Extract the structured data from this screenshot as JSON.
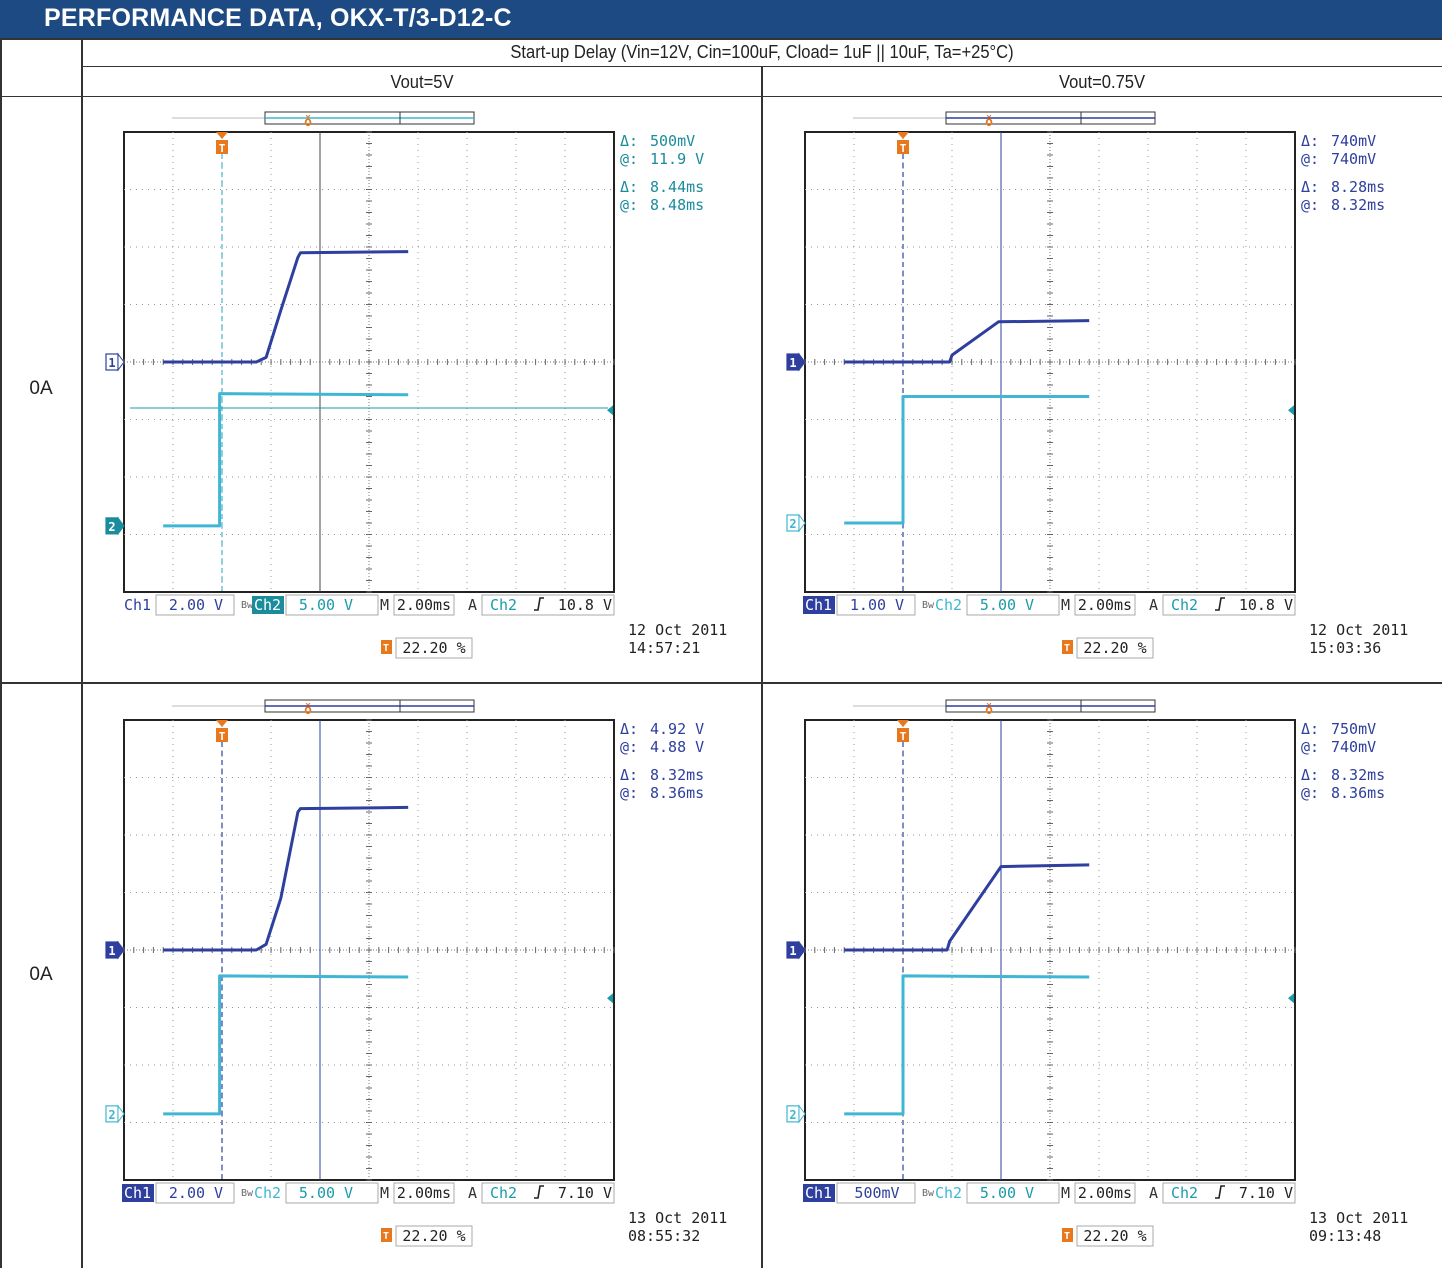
{
  "header": {
    "title": "PERFORMANCE DATA, OKX-T/3-D12-C"
  },
  "table": {
    "caption": "Start-up Delay (Vin=12V, Cin=100uF, Cload= 1uF || 10uF, Ta=+25°C)",
    "columns": [
      "Vout=5V",
      "Vout=0.75V"
    ],
    "rows": [
      "0A",
      "0A"
    ]
  },
  "colors": {
    "ch1": "#2e3f9e",
    "ch2": "#3fb6d3",
    "trigger": "#e8781e",
    "header_bg": "#1d4a82",
    "meas": "#1a8c9c"
  },
  "chart_data": [
    {
      "type": "line",
      "title": "",
      "xlabel": "",
      "ylabel": "",
      "timebase_label": "2.00ms",
      "timebase": 2.0,
      "divisions": [
        10,
        8
      ],
      "grid": true,
      "trigger_time": 0.2,
      "trigger_vdiv": 0.13,
      "ch1": {
        "label": "Ch1",
        "scale": "2.00 V",
        "ref_div": 4.0,
        "cursor_time": 4.2,
        "highlight": false,
        "points": [
          [
            -2.2,
            0
          ],
          [
            1.6,
            0
          ],
          [
            2.0,
            0.08
          ],
          [
            2.6,
            0.9
          ],
          [
            3.3,
            1.82
          ],
          [
            3.4,
            1.9
          ],
          [
            7.8,
            1.92
          ]
        ]
      },
      "ch2": {
        "label": "Ch2",
        "scale": "5.00 V",
        "ref_div": 1.15,
        "highlight": true,
        "points": [
          [
            -2.2,
            0
          ],
          [
            0.1,
            0
          ],
          [
            0.1,
            2.3
          ],
          [
            7.8,
            2.28
          ]
        ]
      },
      "trigger": {
        "label": "A",
        "source": "Ch2",
        "level": "10.8 V",
        "position": "22.20 %"
      },
      "measurements": {
        "dv": "500mV",
        "v_at": "11.9 V",
        "dt": "8.44ms",
        "t_at": "8.48ms"
      },
      "date": "12 Oct  2011",
      "time": "14:57:21",
      "hcursor_div": 3.2,
      "labels": {
        "delta": "Δ:",
        "at": "@:",
        "ch_badge_1": "1",
        "ch_badge_2": "2",
        "trig_marker": "T",
        "mark_m": "M"
      }
    },
    {
      "type": "line",
      "title": "",
      "xlabel": "",
      "ylabel": "",
      "timebase_label": "2.00ms",
      "timebase": 2.0,
      "divisions": [
        10,
        8
      ],
      "grid": true,
      "trigger_time": 0.2,
      "trigger_vdiv": 0.13,
      "ch1": {
        "label": "Ch1",
        "scale": "1.00 V",
        "ref_div": 4.0,
        "cursor_time": 4.2,
        "highlight": true,
        "points": [
          [
            -2.2,
            0
          ],
          [
            2.1,
            0
          ],
          [
            2.2,
            0.12
          ],
          [
            4.1,
            0.7
          ],
          [
            7.8,
            0.72
          ]
        ]
      },
      "ch2": {
        "label": "Ch2",
        "scale": "5.00 V",
        "ref_div": 1.2,
        "highlight": false,
        "points": [
          [
            -2.2,
            0
          ],
          [
            0.2,
            0
          ],
          [
            0.2,
            2.2
          ],
          [
            7.8,
            2.2
          ]
        ]
      },
      "trigger": {
        "label": "A",
        "source": "Ch2",
        "level": "10.8 V",
        "position": "22.20 %"
      },
      "measurements": {
        "dv": "740mV",
        "v_at": "740mV",
        "dt": "8.28ms",
        "t_at": "8.32ms"
      },
      "date": "12 Oct  2011",
      "time": "15:03:36",
      "hcursor_div": null,
      "labels": {
        "delta": "Δ:",
        "at": "@:",
        "ch_badge_1": "1",
        "ch_badge_2": "2",
        "trig_marker": "T",
        "mark_m": "M"
      }
    },
    {
      "type": "line",
      "title": "",
      "xlabel": "",
      "ylabel": "",
      "timebase_label": "2.00ms",
      "timebase": 2.0,
      "divisions": [
        10,
        8
      ],
      "grid": true,
      "trigger_time": 0.2,
      "trigger_vdiv": 0.13,
      "ch1": {
        "label": "Ch1",
        "scale": "2.00 V",
        "ref_div": 4.0,
        "cursor_time": 4.2,
        "highlight": true,
        "points": [
          [
            -2.2,
            0
          ],
          [
            1.6,
            0
          ],
          [
            2.0,
            0.1
          ],
          [
            2.6,
            0.9
          ],
          [
            3.3,
            2.4
          ],
          [
            3.4,
            2.46
          ],
          [
            7.8,
            2.48
          ]
        ]
      },
      "ch2": {
        "label": "Ch2",
        "scale": "5.00 V",
        "ref_div": 1.15,
        "highlight": false,
        "points": [
          [
            -2.2,
            0
          ],
          [
            0.1,
            0
          ],
          [
            0.1,
            2.4
          ],
          [
            7.8,
            2.38
          ]
        ]
      },
      "trigger": {
        "label": "A",
        "source": "Ch2",
        "level": "7.10 V",
        "position": "22.20 %"
      },
      "measurements": {
        "dv": "4.92 V",
        "v_at": "4.88 V",
        "dt": "8.32ms",
        "t_at": "8.36ms"
      },
      "date": "13 Oct  2011",
      "time": "08:55:32",
      "hcursor_div": null,
      "labels": {
        "delta": "Δ:",
        "at": "@:",
        "ch_badge_1": "1",
        "ch_badge_2": "2",
        "trig_marker": "T",
        "mark_m": "M"
      }
    },
    {
      "type": "line",
      "title": "",
      "xlabel": "",
      "ylabel": "",
      "timebase_label": "2.00ms",
      "timebase": 2.0,
      "divisions": [
        10,
        8
      ],
      "grid": true,
      "trigger_time": 0.2,
      "trigger_vdiv": 0.13,
      "ch1": {
        "label": "Ch1",
        "scale": "500mV",
        "ref_div": 4.0,
        "cursor_time": 4.2,
        "highlight": true,
        "points": [
          [
            -2.2,
            0
          ],
          [
            2.0,
            0
          ],
          [
            2.1,
            0.15
          ],
          [
            4.2,
            1.45
          ],
          [
            7.8,
            1.48
          ]
        ]
      },
      "ch2": {
        "label": "Ch2",
        "scale": "5.00 V",
        "ref_div": 1.15,
        "highlight": false,
        "points": [
          [
            -2.2,
            0
          ],
          [
            0.2,
            0
          ],
          [
            0.2,
            2.4
          ],
          [
            7.8,
            2.38
          ]
        ]
      },
      "trigger": {
        "label": "A",
        "source": "Ch2",
        "level": "7.10 V",
        "position": "22.20 %"
      },
      "measurements": {
        "dv": "750mV",
        "v_at": "740mV",
        "dt": "8.32ms",
        "t_at": "8.36ms"
      },
      "date": "13 Oct  2011",
      "time": "09:13:48",
      "hcursor_div": null,
      "labels": {
        "delta": "Δ:",
        "at": "@:",
        "ch_badge_1": "1",
        "ch_badge_2": "2",
        "trig_marker": "T",
        "mark_m": "M"
      }
    }
  ]
}
